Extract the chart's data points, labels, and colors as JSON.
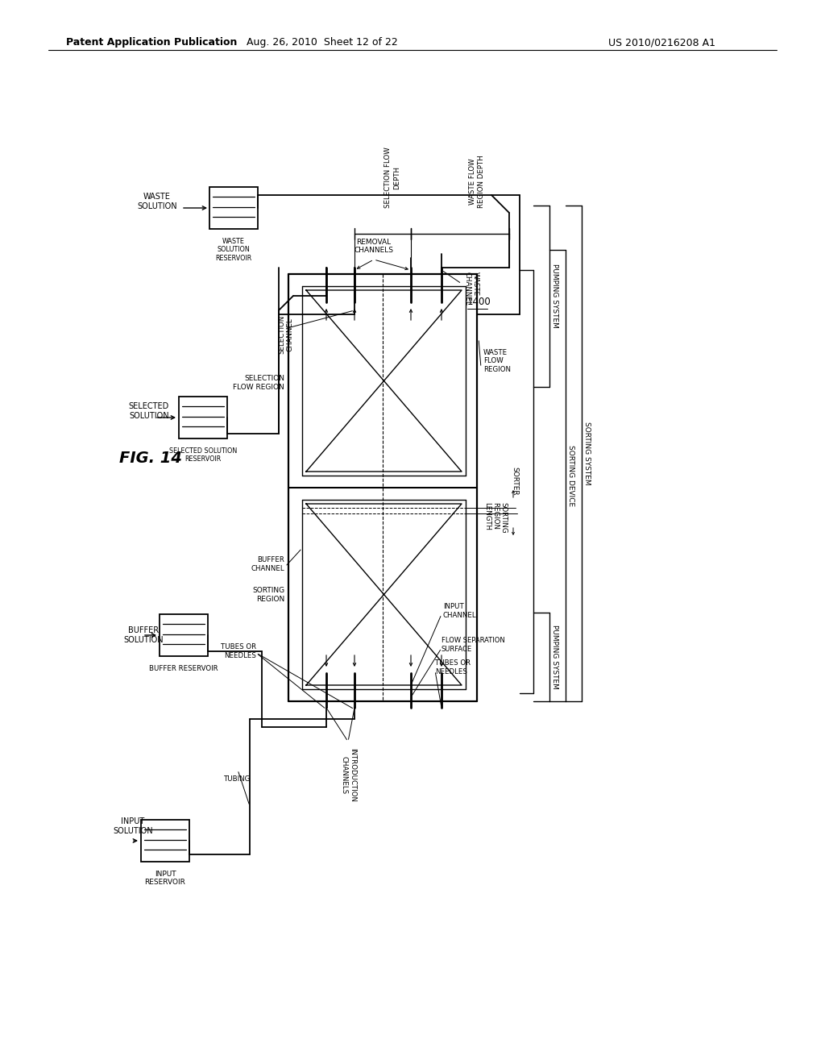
{
  "bg_color": "#ffffff",
  "text_color": "#000000",
  "header_left": "Patent Application Publication",
  "header_center": "Aug. 26, 2010  Sheet 12 of 22",
  "header_right": "US 2010/0216208 A1"
}
